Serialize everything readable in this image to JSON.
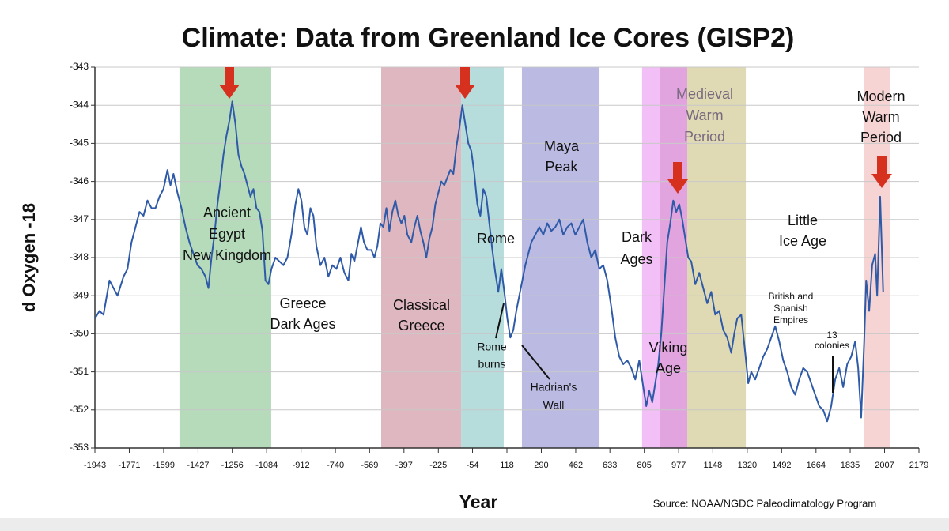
{
  "chart_data": {
    "type": "line",
    "title": "Climate: Data from Greenland Ice Cores (GISP2)",
    "x_label": "Year",
    "y_label": "d Oxygen -18",
    "source": "Source: NOAA/NGDC Paleoclimatology Program",
    "xlim": [
      -1943,
      2179
    ],
    "xticks": [
      -1943,
      -1771,
      -1599,
      -1427,
      -1256,
      -1084,
      -912,
      -740,
      -569,
      -397,
      -225,
      -54,
      118,
      290,
      462,
      633,
      805,
      977,
      1148,
      1320,
      1492,
      1664,
      1835,
      2007,
      2179
    ],
    "ylim": [
      -353,
      -343
    ],
    "yticks": [
      -343,
      -344,
      -345,
      -346,
      -347,
      -348,
      -349,
      -350,
      -351,
      -352,
      -353
    ],
    "grid": true,
    "bands": [
      {
        "start": -1520,
        "end": -1061,
        "color": "#a8d5ae"
      },
      {
        "start": -511,
        "end": -111,
        "color": "#d9aab5"
      },
      {
        "start": -111,
        "end": 102,
        "color": "#a9d6d6"
      },
      {
        "start": 193,
        "end": 581,
        "color": "#aeaede"
      },
      {
        "start": 794,
        "end": 885,
        "color": "#f0b4f4"
      },
      {
        "start": 885,
        "end": 1020,
        "color": "#dc94d8"
      },
      {
        "start": 1020,
        "end": 1313,
        "color": "#d9d3a6"
      },
      {
        "start": 1906,
        "end": 2036,
        "color": "#f6cccc"
      }
    ],
    "annotations": [
      [
        "Ancient",
        "Egypt",
        "New Kingdom"
      ],
      [
        "Greece",
        "Dark Ages"
      ],
      [
        "Classical",
        "Greece"
      ],
      [
        "Rome"
      ],
      [
        "Maya",
        "Peak"
      ],
      [
        "Rome",
        "burns"
      ],
      [
        "Hadrian's",
        "Wall"
      ],
      [
        "Dark",
        "Ages"
      ],
      [
        "Viking",
        "Age"
      ],
      [
        "Medieval",
        "Warm",
        "Period"
      ],
      [
        "Little",
        "Ice Age"
      ],
      [
        "British and",
        "Spanish",
        "Empires"
      ],
      [
        "13",
        "colonies"
      ],
      [
        "Modern",
        "Warm",
        "Period"
      ]
    ],
    "series": [
      {
        "color": "#2f5aa8",
        "x": [
          -1943,
          -1920,
          -1900,
          -1870,
          -1850,
          -1830,
          -1800,
          -1780,
          -1760,
          -1740,
          -1720,
          -1700,
          -1680,
          -1660,
          -1640,
          -1620,
          -1600,
          -1580,
          -1565,
          -1550,
          -1530,
          -1510,
          -1490,
          -1470,
          -1450,
          -1430,
          -1410,
          -1390,
          -1375,
          -1360,
          -1345,
          -1330,
          -1315,
          -1300,
          -1285,
          -1270,
          -1256,
          -1240,
          -1225,
          -1210,
          -1195,
          -1180,
          -1165,
          -1150,
          -1135,
          -1120,
          -1105,
          -1090,
          -1075,
          -1060,
          -1040,
          -1020,
          -1000,
          -980,
          -960,
          -940,
          -925,
          -910,
          -895,
          -880,
          -865,
          -850,
          -835,
          -815,
          -795,
          -775,
          -755,
          -735,
          -715,
          -695,
          -675,
          -660,
          -645,
          -630,
          -612,
          -597,
          -580,
          -560,
          -545,
          -530,
          -515,
          -500,
          -485,
          -470,
          -455,
          -440,
          -425,
          -410,
          -395,
          -380,
          -360,
          -345,
          -330,
          -315,
          -300,
          -285,
          -270,
          -255,
          -240,
          -225,
          -210,
          -195,
          -180,
          -165,
          -150,
          -135,
          -120,
          -105,
          -90,
          -75,
          -60,
          -45,
          -30,
          -15,
          0,
          15,
          30,
          45,
          60,
          75,
          90,
          105,
          120,
          135,
          150,
          165,
          180,
          195,
          210,
          225,
          240,
          260,
          280,
          300,
          320,
          340,
          360,
          380,
          400,
          420,
          440,
          460,
          480,
          500,
          520,
          540,
          560,
          580,
          600,
          620,
          640,
          660,
          680,
          700,
          720,
          740,
          760,
          780,
          800,
          815,
          830,
          845,
          860,
          875,
          890,
          905,
          920,
          935,
          950,
          965,
          980,
          995,
          1010,
          1025,
          1040,
          1060,
          1080,
          1100,
          1120,
          1140,
          1160,
          1180,
          1200,
          1220,
          1240,
          1255,
          1270,
          1290,
          1310,
          1325,
          1340,
          1360,
          1380,
          1400,
          1420,
          1440,
          1460,
          1480,
          1500,
          1520,
          1540,
          1560,
          1580,
          1600,
          1620,
          1640,
          1660,
          1680,
          1700,
          1720,
          1740,
          1760,
          1780,
          1800,
          1820,
          1840,
          1860,
          1875,
          1890,
          1905,
          1915,
          1930,
          1945,
          1960,
          1970,
          1985,
          2000
        ],
        "values": [
          -349.6,
          -349.4,
          -349.5,
          -348.6,
          -348.8,
          -349.0,
          -348.5,
          -348.3,
          -347.6,
          -347.2,
          -346.8,
          -346.9,
          -346.5,
          -346.7,
          -346.7,
          -346.4,
          -346.2,
          -345.7,
          -346.1,
          -345.8,
          -346.3,
          -346.7,
          -347.2,
          -347.6,
          -347.9,
          -348.2,
          -348.3,
          -348.5,
          -348.8,
          -348.0,
          -347.4,
          -346.6,
          -346.0,
          -345.3,
          -344.8,
          -344.4,
          -343.9,
          -344.5,
          -345.3,
          -345.6,
          -345.8,
          -346.1,
          -346.4,
          -346.2,
          -346.7,
          -346.8,
          -347.3,
          -348.6,
          -348.7,
          -348.3,
          -348.0,
          -348.1,
          -348.2,
          -348.0,
          -347.4,
          -346.6,
          -346.2,
          -346.5,
          -347.2,
          -347.4,
          -346.7,
          -346.9,
          -347.7,
          -348.2,
          -348.0,
          -348.5,
          -348.2,
          -348.3,
          -348.0,
          -348.4,
          -348.6,
          -347.9,
          -348.1,
          -347.7,
          -347.2,
          -347.6,
          -347.8,
          -347.8,
          -348.0,
          -347.7,
          -347.1,
          -347.2,
          -346.7,
          -347.3,
          -346.8,
          -346.5,
          -346.9,
          -347.1,
          -346.9,
          -347.4,
          -347.6,
          -347.2,
          -346.9,
          -347.3,
          -347.6,
          -348.0,
          -347.5,
          -347.2,
          -346.6,
          -346.3,
          -346.0,
          -346.1,
          -345.9,
          -345.7,
          -345.8,
          -345.1,
          -344.6,
          -344.0,
          -344.5,
          -345.0,
          -345.2,
          -345.8,
          -346.6,
          -346.9,
          -346.2,
          -346.4,
          -347.1,
          -347.8,
          -348.4,
          -348.9,
          -348.3,
          -348.9,
          -349.6,
          -350.1,
          -349.9,
          -349.4,
          -349.0,
          -348.6,
          -348.2,
          -347.9,
          -347.6,
          -347.4,
          -347.2,
          -347.4,
          -347.1,
          -347.3,
          -347.2,
          -347.0,
          -347.4,
          -347.2,
          -347.1,
          -347.4,
          -347.2,
          -347.0,
          -347.6,
          -348.0,
          -347.8,
          -348.3,
          -348.2,
          -348.6,
          -349.3,
          -350.1,
          -350.6,
          -350.8,
          -350.7,
          -350.9,
          -351.2,
          -350.7,
          -351.4,
          -351.9,
          -351.5,
          -351.8,
          -351.3,
          -350.8,
          -350.0,
          -348.8,
          -347.6,
          -347.1,
          -346.5,
          -346.8,
          -346.6,
          -347.0,
          -347.5,
          -348.0,
          -348.1,
          -348.7,
          -348.4,
          -348.8,
          -349.2,
          -348.9,
          -349.5,
          -349.4,
          -349.9,
          -350.1,
          -350.5,
          -350.0,
          -349.6,
          -349.5,
          -350.5,
          -351.3,
          -351.0,
          -351.2,
          -350.9,
          -350.6,
          -350.4,
          -350.1,
          -349.8,
          -350.2,
          -350.7,
          -351.0,
          -351.4,
          -351.6,
          -351.2,
          -350.9,
          -351.0,
          -351.3,
          -351.6,
          -351.9,
          -352.0,
          -352.3,
          -351.9,
          -351.2,
          -350.9,
          -351.4,
          -350.8,
          -350.6,
          -350.2,
          -350.9,
          -352.2,
          -350.2,
          -348.6,
          -349.4,
          -348.2,
          -347.9,
          -349.0,
          -346.4,
          -348.9
        ]
      }
    ]
  }
}
